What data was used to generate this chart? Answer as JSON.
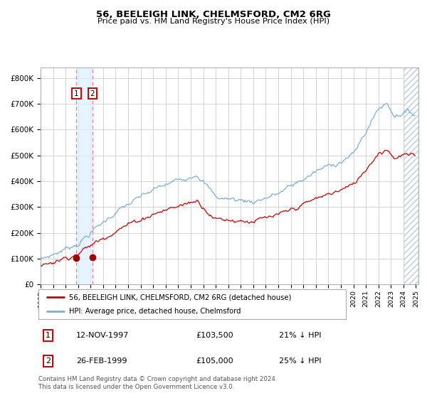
{
  "title": "56, BEELEIGH LINK, CHELMSFORD, CM2 6RG",
  "subtitle": "Price paid vs. HM Land Registry's House Price Index (HPI)",
  "ylabel_ticks": [
    "£0",
    "£100K",
    "£200K",
    "£300K",
    "£400K",
    "£500K",
    "£600K",
    "£700K",
    "£800K"
  ],
  "ytick_values": [
    0,
    100000,
    200000,
    300000,
    400000,
    500000,
    600000,
    700000,
    800000
  ],
  "ylim": [
    0,
    840000
  ],
  "xlim_start": 1995.0,
  "xlim_end": 2025.2,
  "xtick_years": [
    1995,
    1996,
    1997,
    1998,
    1999,
    2000,
    2001,
    2002,
    2003,
    2004,
    2005,
    2006,
    2007,
    2008,
    2009,
    2010,
    2011,
    2012,
    2013,
    2014,
    2015,
    2016,
    2017,
    2018,
    2019,
    2020,
    2021,
    2022,
    2023,
    2024,
    2025
  ],
  "legend_line1": "56, BEELEIGH LINK, CHELMSFORD, CM2 6RG (detached house)",
  "legend_line2": "HPI: Average price, detached house, Chelmsford",
  "sale1_date": 1997.87,
  "sale1_price": 103500,
  "sale1_label": "1",
  "sale2_date": 1999.15,
  "sale2_price": 105000,
  "sale2_label": "2",
  "table_row1": [
    "1",
    "12-NOV-1997",
    "£103,500",
    "21% ↓ HPI"
  ],
  "table_row2": [
    "2",
    "26-FEB-1999",
    "£105,000",
    "25% ↓ HPI"
  ],
  "footer": "Contains HM Land Registry data © Crown copyright and database right 2024.\nThis data is licensed under the Open Government Licence v3.0.",
  "line_color_red": "#cc0000",
  "line_color_blue": "#7ab0d4",
  "grid_color": "#cccccc",
  "sale_marker_color": "#990000",
  "vline_color": "#dd8888",
  "span_color": "#ddeeff",
  "hatch_color": "#bbccdd",
  "background_color": "#ffffff",
  "plot_bg": "#ffffff"
}
